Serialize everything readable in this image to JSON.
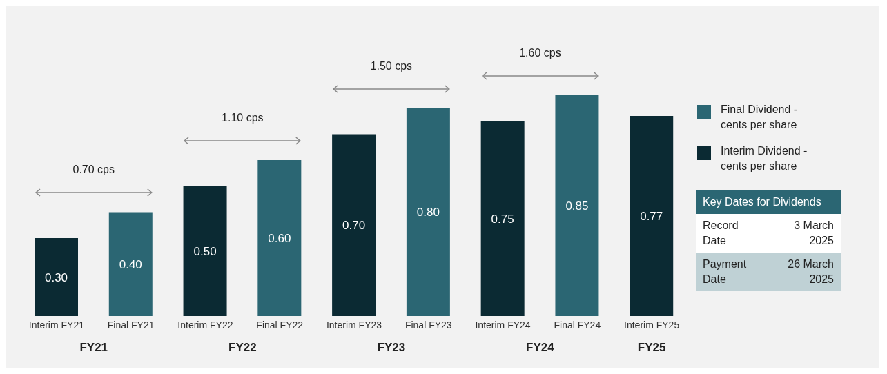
{
  "chart_data": {
    "type": "bar",
    "categories": [
      "Interim FY21",
      "Final FY21",
      "Interim FY22",
      "Final FY22",
      "Interim FY23",
      "Final FY23",
      "Interim FY24",
      "Final FY24",
      "Interim FY25"
    ],
    "series": [
      {
        "name": "Final Dividend - cents per share",
        "color": "#2b6673",
        "values": [
          null,
          0.4,
          null,
          0.6,
          null,
          0.8,
          null,
          0.85,
          null
        ],
        "value_labels": [
          null,
          "0.40",
          null,
          "0.60",
          null,
          "0.80",
          null,
          "0.85",
          null
        ]
      },
      {
        "name": "Interim Dividend - cents per share",
        "color": "#0b2a33",
        "values": [
          0.3,
          null,
          0.5,
          null,
          0.7,
          null,
          0.75,
          null,
          0.77
        ],
        "value_labels": [
          "0.30",
          null,
          "0.50",
          null,
          "0.70",
          null,
          "0.75",
          null,
          "0.77"
        ]
      }
    ],
    "legend": "right",
    "annotations": [
      "FY21",
      "FY22",
      "FY23",
      "FY24",
      "FY25",
      "0.70 cps",
      "1.10 cps",
      "1.50 cps",
      "1.60 cps",
      "Key Dates for Dividends",
      "Record Date",
      "3 March 2025",
      "Payment Date",
      "26 March 2025"
    ]
  }
}
